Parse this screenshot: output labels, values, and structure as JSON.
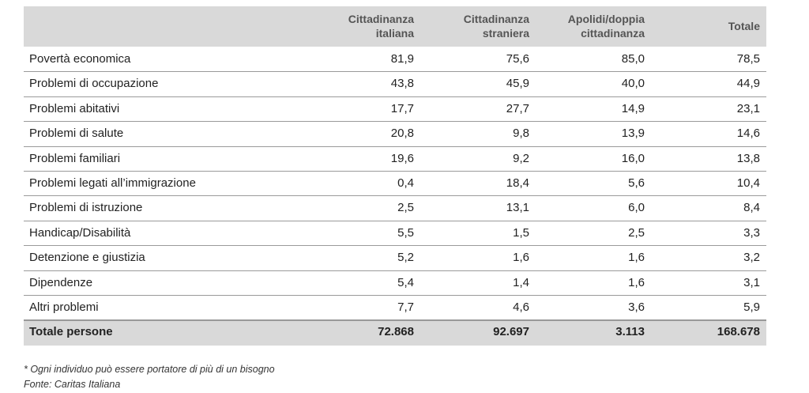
{
  "table": {
    "headers": [
      [
        "Cittadinanza",
        "italiana"
      ],
      [
        "Cittadinanza",
        "straniera"
      ],
      [
        "Apolidi/doppia",
        "cittadinanza"
      ],
      [
        "Totale"
      ]
    ],
    "rows": [
      [
        "Povertà economica",
        "81,9",
        "75,6",
        "85,0",
        "78,5"
      ],
      [
        "Problemi di occupazione",
        "43,8",
        "45,9",
        "40,0",
        "44,9"
      ],
      [
        "Problemi abitativi",
        "17,7",
        "27,7",
        "14,9",
        "23,1"
      ],
      [
        "Problemi di salute",
        "20,8",
        "9,8",
        "13,9",
        "14,6"
      ],
      [
        "Problemi familiari",
        "19,6",
        "9,2",
        "16,0",
        "13,8"
      ],
      [
        "Problemi legati all’immigrazione",
        "0,4",
        "18,4",
        "5,6",
        "10,4"
      ],
      [
        "Problemi di istruzione",
        "2,5",
        "13,1",
        "6,0",
        "8,4"
      ],
      [
        "Handicap/Disabilità",
        "5,5",
        "1,5",
        "2,5",
        "3,3"
      ],
      [
        "Detenzione e giustizia",
        "5,2",
        "1,6",
        "1,6",
        "3,2"
      ],
      [
        "Dipendenze",
        "5,4",
        "1,4",
        "1,6",
        "3,1"
      ],
      [
        "Altri problemi",
        "7,7",
        "4,6",
        "3,6",
        "5,9"
      ]
    ],
    "total": [
      "Totale persone",
      "72.868",
      "92.697",
      "3.113",
      "168.678"
    ]
  },
  "notes": [
    "* Ogni individuo può essere portatore di più di un bisogno",
    "Fonte: Caritas Italiana"
  ]
}
